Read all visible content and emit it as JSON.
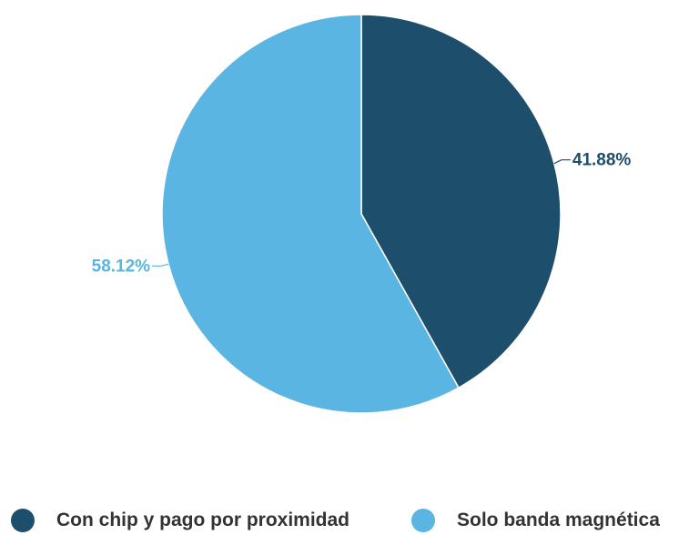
{
  "chart_data": {
    "type": "pie",
    "categories": [
      "Con chip y pago por proximidad",
      "Solo banda magnética"
    ],
    "values": [
      41.88,
      58.12
    ],
    "labels": [
      "41.88%",
      "58.12%"
    ],
    "colors": [
      "#1d4e6b",
      "#5bb5e3"
    ],
    "start_angle_deg": 0,
    "direction": "clockwise",
    "legend_position": "bottom"
  },
  "legend": {
    "items": [
      {
        "label": "Con chip y pago por proximidad",
        "color": "#1d4e6b"
      },
      {
        "label": "Solo banda magnética",
        "color": "#5bb5e3"
      }
    ]
  }
}
